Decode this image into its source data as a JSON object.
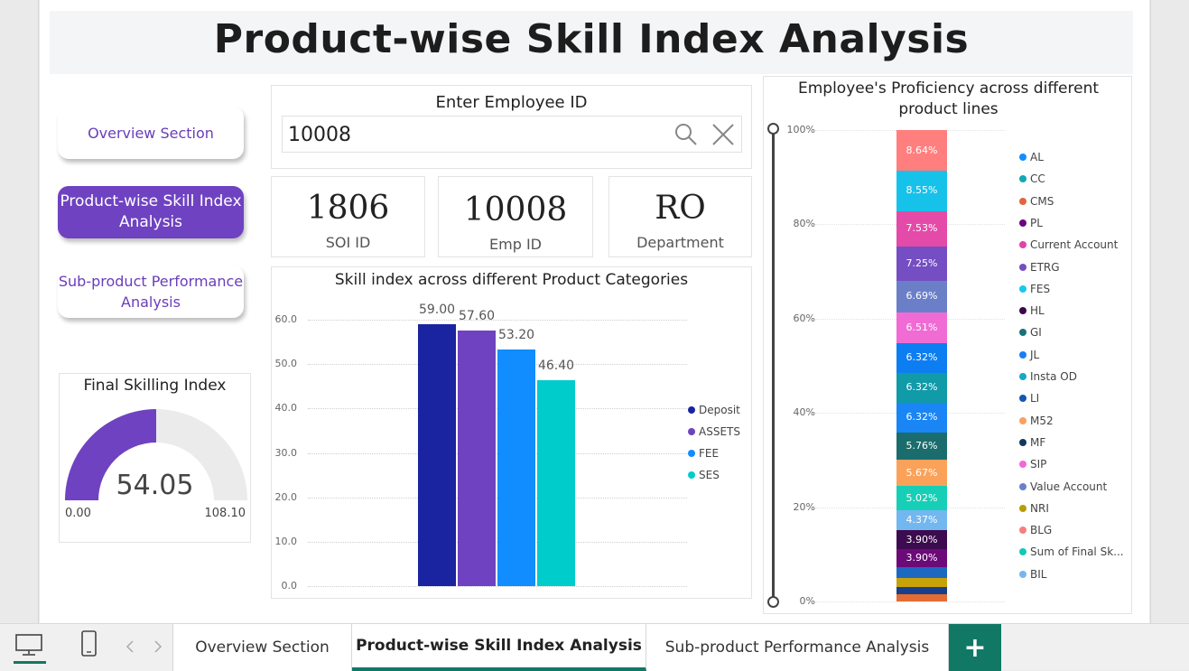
{
  "title": "Product-wise Skill Index Analysis",
  "nav": {
    "overview": "Overview Section",
    "product": "Product-wise Skill Index Analysis",
    "subproduct": "Sub-product Performance Analysis"
  },
  "search": {
    "title": "Enter Employee ID",
    "value": "10008"
  },
  "cards": [
    {
      "value": "1806",
      "label": "SOI ID"
    },
    {
      "value": "10008",
      "label": "Emp ID"
    },
    {
      "value": "RO",
      "label": "Department"
    }
  ],
  "gauge": {
    "title": "Final Skilling Index",
    "value": "54.05",
    "min": "0.00",
    "max": "108.10",
    "fraction": 0.5,
    "color": "#6f42c1"
  },
  "chart_data": [
    {
      "type": "bar",
      "title": "Skill index across different Product Categories",
      "yticks": [
        "0.0",
        "10.0",
        "20.0",
        "30.0",
        "40.0",
        "50.0",
        "60.0"
      ],
      "ylim": [
        0,
        60
      ],
      "series": [
        {
          "name": "Deposit",
          "value": 59.0,
          "label": "59.00",
          "color": "#1a23a0"
        },
        {
          "name": "ASSETS",
          "value": 57.6,
          "label": "57.60",
          "color": "#6f42c1"
        },
        {
          "name": "FEE",
          "value": 53.2,
          "label": "53.20",
          "color": "#118dff"
        },
        {
          "name": "SES",
          "value": 46.4,
          "label": "46.40",
          "color": "#00cccc"
        }
      ],
      "legend": "right"
    },
    {
      "type": "bar",
      "stacked": "100%",
      "title": "Employee's Proficiency across different product lines",
      "yticks": [
        "0%",
        "20%",
        "40%",
        "60%",
        "80%",
        "100%"
      ],
      "segments": [
        {
          "name": "AL",
          "value": 8.64,
          "label": "8.64%",
          "color": "#ff7f7f"
        },
        {
          "name": "CC",
          "value": 8.55,
          "label": "8.55%",
          "color": "#17c2ea"
        },
        {
          "name": "CMS",
          "value": 7.53,
          "label": "7.53%",
          "color": "#e44aa8"
        },
        {
          "name": "PL",
          "value": 7.25,
          "label": "7.25%",
          "color": "#744ec2"
        },
        {
          "name": "Current Account",
          "value": 6.69,
          "label": "6.69%",
          "color": "#6b7fc9"
        },
        {
          "name": "ETRG",
          "value": 6.51,
          "label": "6.51%",
          "color": "#f06bd4"
        },
        {
          "name": "FES",
          "value": 6.32,
          "label": "6.32%",
          "color": "#0d7ef2"
        },
        {
          "name": "HL",
          "value": 6.32,
          "label": "6.32%",
          "color": "#119aa8"
        },
        {
          "name": "GI",
          "value": 6.32,
          "label": "6.32%",
          "color": "#1a86f5"
        },
        {
          "name": "JL",
          "value": 5.76,
          "label": "5.76%",
          "color": "#1b6d6d"
        },
        {
          "name": "Insta OD",
          "value": 5.67,
          "label": "5.67%",
          "color": "#fba25a"
        },
        {
          "name": "LI",
          "value": 5.02,
          "label": "5.02%",
          "color": "#17cfb6"
        },
        {
          "name": "M52",
          "value": 4.37,
          "label": "4.37%",
          "color": "#73b7f0"
        },
        {
          "name": "MF",
          "value": 3.9,
          "label": "3.90%",
          "color": "#3d0b4f"
        },
        {
          "name": "SIP",
          "value": 3.9,
          "label": "3.90%",
          "color": "#6b0a78"
        },
        {
          "name": "Value Account",
          "value": 2.3,
          "label": "",
          "color": "#1d68c0"
        },
        {
          "name": "NRI",
          "value": 1.9,
          "label": "",
          "color": "#c8a20a"
        },
        {
          "name": "BLG",
          "value": 1.6,
          "label": "",
          "color": "#1a3f8a"
        },
        {
          "name": "Sum of Final Sk...",
          "value": 1.45,
          "label": "",
          "color": "#e36c32"
        }
      ],
      "legend": [
        {
          "name": "AL",
          "color": "#118dff"
        },
        {
          "name": "CC",
          "color": "#12a7b5"
        },
        {
          "name": "CMS",
          "color": "#e0663d"
        },
        {
          "name": "PL",
          "color": "#6b067f"
        },
        {
          "name": "Current Account",
          "color": "#e044a7"
        },
        {
          "name": "ETRG",
          "color": "#744ec2"
        },
        {
          "name": "FES",
          "color": "#1ac8f0"
        },
        {
          "name": "HL",
          "color": "#3c084a"
        },
        {
          "name": "GI",
          "color": "#197278"
        },
        {
          "name": "JL",
          "color": "#1c7ef4"
        },
        {
          "name": "Insta OD",
          "color": "#16a8c7"
        },
        {
          "name": "LI",
          "color": "#1656b4"
        },
        {
          "name": "M52",
          "color": "#fba060"
        },
        {
          "name": "MF",
          "color": "#13375f"
        },
        {
          "name": "SIP",
          "color": "#f06ad6"
        },
        {
          "name": "Value Account",
          "color": "#6b7fc9"
        },
        {
          "name": "NRI",
          "color": "#b59d08"
        },
        {
          "name": "BLG",
          "color": "#f77f7f"
        },
        {
          "name": "Sum of Final Sk...",
          "color": "#14c9b6"
        },
        {
          "name": "BIL",
          "color": "#78b4f0"
        }
      ]
    }
  ],
  "tabs": {
    "overview": "Overview Section",
    "product": "Product-wise Skill Index Analysis",
    "subproduct": "Sub-product Performance Analysis",
    "add": "+"
  }
}
